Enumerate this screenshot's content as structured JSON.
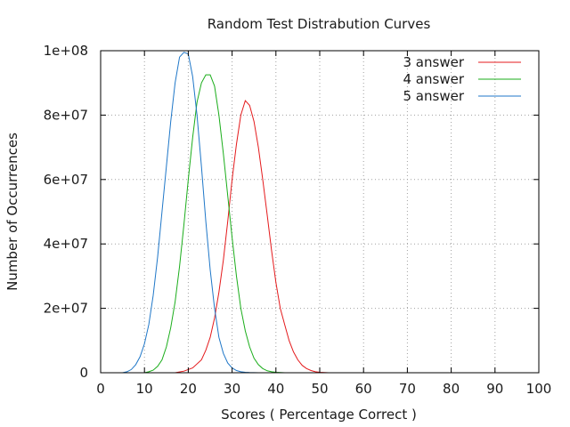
{
  "chart_data": {
    "type": "line",
    "title": "Random Test Distrabution Curves",
    "xlabel": "Scores ( Percentage Correct )",
    "ylabel": "Number of Occurrences",
    "xlim": [
      0,
      100
    ],
    "ylim": [
      0,
      100000000
    ],
    "xticks": [
      0,
      10,
      20,
      30,
      40,
      50,
      60,
      70,
      80,
      90,
      100
    ],
    "xtick_labels": [
      "0",
      "10",
      "20",
      "30",
      "40",
      "50",
      "60",
      "70",
      "80",
      "90",
      "100"
    ],
    "yticks": [
      0,
      20000000,
      40000000,
      60000000,
      80000000,
      100000000
    ],
    "ytick_labels": [
      "0",
      "2e+07",
      "4e+07",
      "6e+07",
      "8e+07",
      "1e+08"
    ],
    "grid": true,
    "legend_position": "top-right",
    "series": [
      {
        "name": "3 answer",
        "color": "#e41a1c",
        "x": [
          17,
          19,
          21,
          23,
          24,
          25,
          26,
          27,
          28,
          29,
          30,
          31,
          32,
          33,
          34,
          35,
          36,
          37,
          38,
          39,
          40,
          41,
          42,
          43,
          44,
          45,
          46,
          47,
          48,
          49,
          50,
          51,
          52
        ],
        "y": [
          0,
          500000,
          1500000,
          4000000,
          7000000,
          11000000,
          17000000,
          25000000,
          35000000,
          47000000,
          60000000,
          71000000,
          80000000,
          84500000,
          83000000,
          78000000,
          70000000,
          60000000,
          49000000,
          38000000,
          28000000,
          20000000,
          15000000,
          10000000,
          6500000,
          4000000,
          2300000,
          1300000,
          700000,
          300000,
          150000,
          50000,
          0
        ]
      },
      {
        "name": "4 answer",
        "color": "#1aad1a",
        "x": [
          10,
          11,
          12,
          13,
          14,
          15,
          16,
          17,
          18,
          19,
          20,
          21,
          22,
          23,
          24,
          25,
          26,
          27,
          28,
          29,
          30,
          31,
          32,
          33,
          34,
          35,
          36,
          37,
          38,
          39,
          40,
          41,
          42
        ],
        "y": [
          0,
          300000,
          800000,
          2000000,
          4000000,
          8000000,
          14000000,
          22000000,
          33000000,
          46000000,
          60000000,
          73000000,
          84000000,
          90000000,
          92500000,
          92500000,
          89000000,
          80000000,
          68000000,
          55000000,
          42000000,
          30000000,
          20000000,
          13000000,
          8000000,
          4500000,
          2500000,
          1300000,
          600000,
          300000,
          150000,
          50000,
          0
        ]
      },
      {
        "name": "5 answer",
        "color": "#1f77c8",
        "x": [
          5,
          6,
          7,
          8,
          9,
          10,
          11,
          12,
          13,
          14,
          15,
          16,
          17,
          18,
          19,
          20,
          21,
          22,
          23,
          24,
          25,
          26,
          27,
          28,
          29,
          30,
          31,
          32,
          33,
          34,
          35,
          36
        ],
        "y": [
          0,
          300000,
          1000000,
          2500000,
          5000000,
          9000000,
          15000000,
          24000000,
          36000000,
          50000000,
          64000000,
          78000000,
          90000000,
          98000000,
          99500000,
          99000000,
          92000000,
          80000000,
          64000000,
          47000000,
          32000000,
          20000000,
          11000000,
          6000000,
          3000000,
          1500000,
          700000,
          300000,
          150000,
          60000,
          20000,
          0
        ]
      }
    ]
  }
}
